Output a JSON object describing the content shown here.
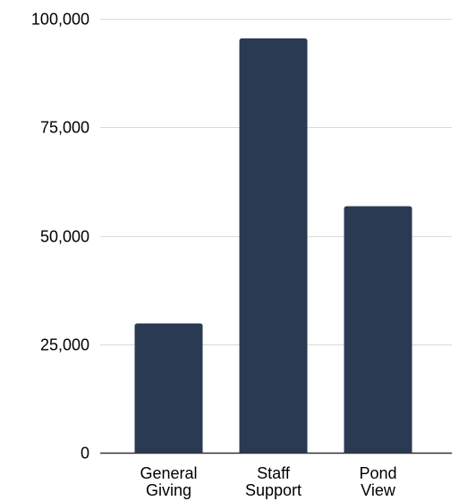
{
  "chart_data": {
    "type": "bar",
    "categories": [
      [
        "General",
        "Giving"
      ],
      [
        "Staff",
        "Support"
      ],
      [
        "Pond",
        "View"
      ]
    ],
    "values": [
      29800,
      95500,
      56800
    ],
    "title": "",
    "xlabel": "",
    "ylabel": "",
    "ylim": [
      0,
      100000
    ],
    "yticks": [
      0,
      25000,
      50000,
      75000,
      100000
    ],
    "ytick_labels": [
      "0",
      "25,000",
      "50,000",
      "75,000",
      "100,000"
    ],
    "grid": true,
    "bar_color": "#2a3a52",
    "grid_color": "#d9d9d9",
    "axis_color": "#333333"
  }
}
